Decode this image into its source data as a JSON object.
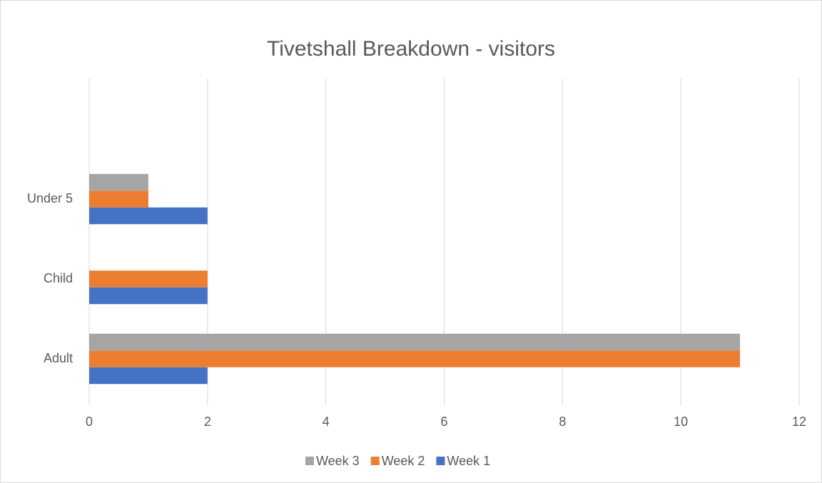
{
  "chart_data": {
    "type": "bar",
    "orientation": "horizontal",
    "title": "Tivetshall Breakdown - visitors",
    "categories": [
      "Adult",
      "Child",
      "Under 5"
    ],
    "series": [
      {
        "name": "Week 1",
        "color": "#4472c4",
        "values": [
          2,
          2,
          2
        ]
      },
      {
        "name": "Week 2",
        "color": "#ed7d31",
        "values": [
          11,
          2,
          1
        ]
      },
      {
        "name": "Week 3",
        "color": "#a5a5a5",
        "values": [
          11,
          0,
          1
        ]
      }
    ],
    "xlim": [
      0,
      12
    ],
    "xticks": [
      0,
      2,
      4,
      6,
      8,
      10,
      12
    ],
    "grid": true,
    "legend": "bottom"
  }
}
